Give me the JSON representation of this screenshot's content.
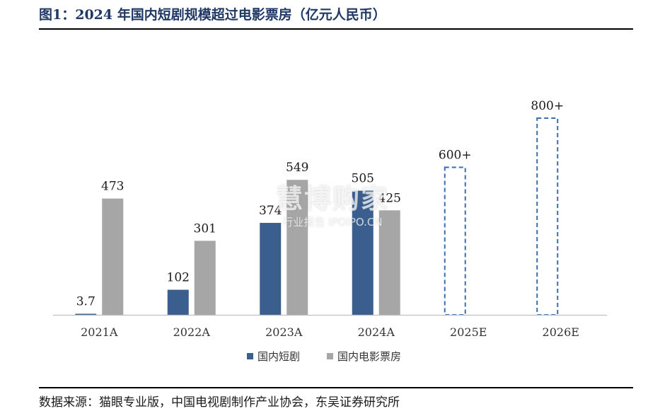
{
  "title": "图1：2024 年国内短剧规模超过电影票房（亿元人民币）",
  "source": "数据来源：猫眼专业版，中国电视剧制作产业协会，东吴证券研究所",
  "watermark": {
    "main": "慧博购家",
    "sub": "行业报告 IPOIPO.CN"
  },
  "colors": {
    "title": "#1f3864",
    "short_drama": "#3a5f8f",
    "box_office": "#a6a6a6",
    "estimate_border": "#3a6eb4",
    "axis": "#bfbfbf"
  },
  "chart_data": {
    "type": "bar",
    "categories": [
      "2021A",
      "2022A",
      "2023A",
      "2024A",
      "2025E",
      "2026E"
    ],
    "series": [
      {
        "name": "国内短剧",
        "values": [
          3.7,
          102,
          374,
          505,
          600,
          800
        ],
        "labels": [
          "3.7",
          "102",
          "374",
          "505",
          "600+",
          "800+"
        ],
        "estimate": [
          false,
          false,
          false,
          false,
          true,
          true
        ]
      },
      {
        "name": "国内电影票房",
        "values": [
          473,
          301,
          549,
          425,
          null,
          null
        ],
        "labels": [
          "473",
          "301",
          "549",
          "425",
          "",
          ""
        ]
      }
    ],
    "ylim": [
      0,
      1000
    ],
    "grid": false,
    "legend_position": "bottom"
  }
}
